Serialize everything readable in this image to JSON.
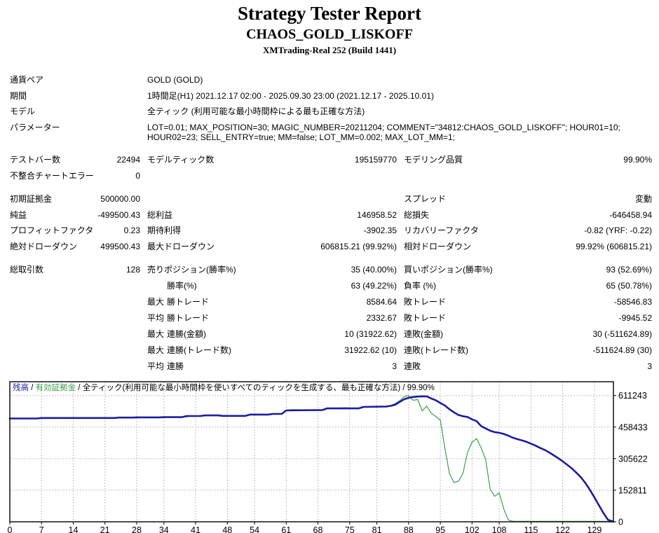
{
  "header": {
    "title": "Strategy Tester Report",
    "strategy": "CHAOS_GOLD_LISKOFF",
    "server": "XMTrading-Real 252 (Build 1441)"
  },
  "report_rows": [
    {
      "c1": "通貨ペア",
      "span": "GOLD (GOLD)"
    },
    {
      "c1": "期間",
      "span": "1時間足(H1) 2021.12.17 02:00 - 2025.09.30 23:00 (2021.12.17 - 2025.10.01)"
    },
    {
      "c1": "モデル",
      "span": "全ティック (利用可能な最小時間枠による最も正確な方法)"
    },
    {
      "c1": "パラメーター",
      "span": "LOT=0.01; MAX_POSITION=30; MAGIC_NUMBER=20211204; COMMENT=\"34812:CHAOS_GOLD_LISKOFF\"; HOUR01=10; HOUR02=23; SELL_ENTRY=true; MM=false; LOT_MM=0.002; MAX_LOT_MM=1;"
    },
    {
      "c1": "テストバー数",
      "v1": "22494",
      "l2": "モデルティック数",
      "v2": "195159770",
      "l3": "モデリング品質",
      "v3": "99.90%"
    },
    {
      "c1": "不整合チャートエラー",
      "v1": "0"
    },
    {
      "c1": "初期証拠金",
      "v1": "500000.00",
      "l3": "スプレッド",
      "v3": "変動"
    },
    {
      "c1": "純益",
      "v1": "-499500.43",
      "l2": "総利益",
      "v2": "146958.52",
      "l3": "総損失",
      "v3": "-646458.94"
    },
    {
      "c1": "プロフィットファクタ",
      "v1": "0.23",
      "l2": "期待利得",
      "v2": "-3902.35",
      "l3": "リカバリーファクタ",
      "v3": "-0.82 (YRF: -0.22)"
    },
    {
      "c1": "絶対ドローダウン",
      "v1": "499500.43",
      "l2": "最大ドローダウン",
      "v2": "606815.21 (99.92%)",
      "l3": "相対ドローダウン",
      "v3": "99.92% (606815.21)"
    },
    {
      "c1": "総取引数",
      "v1": "128",
      "l2": "売りポジション(勝率%)",
      "v2": "35 (40.00%)",
      "l3": "買いポジション(勝率%)",
      "v3": "93 (52.69%)"
    },
    {
      "p2": "",
      "l2": "勝率(%)",
      "v2": "63 (49.22%)",
      "l3": "負率 (%)",
      "v3": "65 (50.78%)"
    },
    {
      "p2": "最大",
      "l2": "勝トレード",
      "v2": "8584.64",
      "l3": "敗トレード",
      "v3": "-58546.83"
    },
    {
      "p2": "平均",
      "l2": "勝トレード",
      "v2": "2332.67",
      "l3": "敗トレード",
      "v3": "-9945.52"
    },
    {
      "p2": "最大",
      "l2": "連勝(金額)",
      "v2": "10 (31922.62)",
      "l3": "連敗(金額)",
      "v3": "30 (-511624.89)"
    },
    {
      "p2": "最大",
      "l2": "連勝(トレード数)",
      "v2": "31922.62 (10)",
      "l3": "連敗(トレード数)",
      "v3": "-511624.89 (30)"
    },
    {
      "p2": "平均",
      "l2": "連勝",
      "v2": "3",
      "l3": "連敗",
      "v3": "3"
    }
  ],
  "chart_data": {
    "type": "line",
    "legend": {
      "balance_label": "残高",
      "equity_label": "有効証拠金",
      "model_label": "全ティック(利用可能な最小時間枠を使いすべてのティックを生成する、最も正確な方法)",
      "quality": "99.90%",
      "separator": " / "
    },
    "xlabel": "",
    "ylabel": "",
    "x_ticks": [
      0,
      7,
      14,
      21,
      28,
      34,
      41,
      48,
      54,
      61,
      68,
      75,
      81,
      88,
      95,
      102,
      108,
      115,
      122,
      129
    ],
    "y_ticks": [
      0,
      152811,
      305622,
      458433,
      611243
    ],
    "xlim": [
      0,
      133.2
    ],
    "ylim": [
      0,
      678000
    ],
    "grid_color": "#BDBDBD",
    "border_color": "#000000",
    "background": "#FFFFFF",
    "series": [
      {
        "id": "balance-line",
        "name": "残高",
        "color": "#1C1CA0",
        "width": 2.6,
        "points": [
          [
            0,
            500000
          ],
          [
            6,
            500000
          ],
          [
            7,
            502500
          ],
          [
            23,
            502500
          ],
          [
            24,
            504500
          ],
          [
            27,
            504500
          ],
          [
            28,
            505500
          ],
          [
            33,
            505500
          ],
          [
            34,
            506500
          ],
          [
            38,
            506500
          ],
          [
            39,
            512000
          ],
          [
            42,
            512000
          ],
          [
            43,
            515000
          ],
          [
            46,
            515000
          ],
          [
            47,
            512500
          ],
          [
            52,
            512500
          ],
          [
            53,
            519000
          ],
          [
            57,
            519000
          ],
          [
            58,
            522000
          ],
          [
            60,
            522000
          ],
          [
            61,
            539000
          ],
          [
            69,
            541000
          ],
          [
            70,
            549000
          ],
          [
            77,
            549000
          ],
          [
            78,
            556000
          ],
          [
            83,
            558000
          ],
          [
            84,
            561000
          ],
          [
            85,
            566000
          ],
          [
            86,
            580000
          ],
          [
            87,
            593000
          ],
          [
            88,
            600000
          ],
          [
            89,
            604000
          ],
          [
            90,
            606000
          ],
          [
            91,
            607300
          ],
          [
            92,
            607300
          ],
          [
            93,
            597000
          ],
          [
            94,
            588000
          ],
          [
            95,
            575000
          ],
          [
            96,
            563000
          ],
          [
            97,
            545000
          ],
          [
            98,
            530000
          ],
          [
            99,
            517000
          ],
          [
            100,
            511000
          ],
          [
            101,
            507000
          ],
          [
            102,
            496000
          ],
          [
            103,
            487000
          ],
          [
            104,
            463000
          ],
          [
            105,
            452000
          ],
          [
            106,
            441000
          ],
          [
            107,
            434000
          ],
          [
            108,
            431000
          ],
          [
            109,
            425000
          ],
          [
            110,
            417000
          ],
          [
            111,
            407000
          ],
          [
            112,
            400000
          ],
          [
            113,
            394000
          ],
          [
            114,
            387000
          ],
          [
            115,
            378000
          ],
          [
            116,
            369000
          ],
          [
            117,
            358000
          ],
          [
            118,
            348000
          ],
          [
            119,
            336000
          ],
          [
            120,
            322000
          ],
          [
            121,
            308000
          ],
          [
            122,
            293000
          ],
          [
            123,
            276000
          ],
          [
            124,
            259000
          ],
          [
            125,
            238000
          ],
          [
            126,
            216000
          ],
          [
            127,
            188000
          ],
          [
            128,
            155000
          ],
          [
            129,
            118000
          ],
          [
            130,
            80000
          ],
          [
            131,
            42000
          ],
          [
            132,
            10000
          ],
          [
            133.2,
            500
          ]
        ]
      },
      {
        "id": "equity-line",
        "name": "有効証拠金",
        "color": "#3AA048",
        "width": 1.2,
        "points": [
          [
            0,
            500000
          ],
          [
            6,
            500000
          ],
          [
            7,
            502500
          ],
          [
            23,
            502500
          ],
          [
            24,
            504500
          ],
          [
            27,
            504500
          ],
          [
            28,
            505500
          ],
          [
            33,
            505500
          ],
          [
            34,
            506500
          ],
          [
            38,
            506500
          ],
          [
            39,
            508000
          ],
          [
            40,
            512000
          ],
          [
            42,
            512000
          ],
          [
            43,
            515000
          ],
          [
            46,
            515000
          ],
          [
            47,
            512500
          ],
          [
            52,
            512500
          ],
          [
            53,
            519000
          ],
          [
            57,
            519000
          ],
          [
            58,
            522000
          ],
          [
            60,
            522000
          ],
          [
            61,
            539000
          ],
          [
            62,
            543000
          ],
          [
            69,
            541000
          ],
          [
            70,
            549000
          ],
          [
            74,
            552000
          ],
          [
            77,
            549000
          ],
          [
            78,
            556000
          ],
          [
            83,
            558000
          ],
          [
            84,
            562000
          ],
          [
            85,
            572000
          ],
          [
            86,
            585000
          ],
          [
            87,
            605000
          ],
          [
            88,
            611243
          ],
          [
            89,
            588000
          ],
          [
            90,
            592000
          ],
          [
            91,
            537000
          ],
          [
            92,
            560000
          ],
          [
            93,
            526000
          ],
          [
            94,
            510000
          ],
          [
            95,
            492000
          ],
          [
            96,
            358000
          ],
          [
            97,
            235000
          ],
          [
            98,
            190000
          ],
          [
            99,
            196000
          ],
          [
            100,
            235000
          ],
          [
            101,
            336000
          ],
          [
            102,
            385000
          ],
          [
            103,
            403000
          ],
          [
            104,
            358000
          ],
          [
            105,
            302000
          ],
          [
            106,
            157000
          ],
          [
            107,
            123000
          ],
          [
            108,
            140000
          ],
          [
            109,
            62000
          ],
          [
            110,
            9000
          ],
          [
            111,
            2500
          ],
          [
            133.2,
            2500
          ]
        ]
      }
    ]
  }
}
